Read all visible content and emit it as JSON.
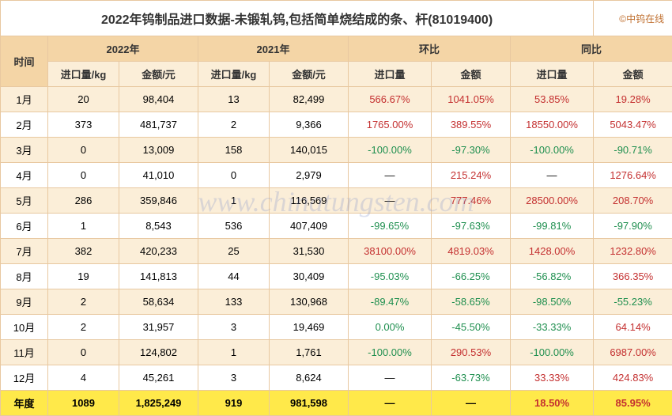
{
  "title": "2022年钨制品进口数据-未锻轧钨,包括简单烧结成的条、杆(81019400)",
  "copyright": "©中钨在线",
  "watermark": "www.chinatungsten.com",
  "header": {
    "time": "时间",
    "g2022": "2022年",
    "g2021": "2021年",
    "mom": "环比",
    "yoy": "同比",
    "vol": "进口量/kg",
    "amt": "金额/元",
    "vol2": "进口量",
    "amt2": "金额"
  },
  "rows": [
    {
      "m": "1月",
      "v22": "20",
      "a22": "98,404",
      "v21": "13",
      "a21": "82,499",
      "mv": "566.67%",
      "mvc": "pos",
      "ma": "1041.05%",
      "mac": "pos",
      "yv": "53.85%",
      "yvc": "pos",
      "ya": "19.28%",
      "yac": "pos"
    },
    {
      "m": "2月",
      "v22": "373",
      "a22": "481,737",
      "v21": "2",
      "a21": "9,366",
      "mv": "1765.00%",
      "mvc": "pos",
      "ma": "389.55%",
      "mac": "pos",
      "yv": "18550.00%",
      "yvc": "pos",
      "ya": "5043.47%",
      "yac": "pos"
    },
    {
      "m": "3月",
      "v22": "0",
      "a22": "13,009",
      "v21": "158",
      "a21": "140,015",
      "mv": "-100.00%",
      "mvc": "neg",
      "ma": "-97.30%",
      "mac": "neg",
      "yv": "-100.00%",
      "yvc": "neg",
      "ya": "-90.71%",
      "yac": "neg"
    },
    {
      "m": "4月",
      "v22": "0",
      "a22": "41,010",
      "v21": "0",
      "a21": "2,979",
      "mv": "—",
      "mvc": "",
      "ma": "215.24%",
      "mac": "pos",
      "yv": "—",
      "yvc": "",
      "ya": "1276.64%",
      "yac": "pos"
    },
    {
      "m": "5月",
      "v22": "286",
      "a22": "359,846",
      "v21": "1",
      "a21": "116,569",
      "mv": "—",
      "mvc": "",
      "ma": "777.46%",
      "mac": "pos",
      "yv": "28500.00%",
      "yvc": "pos",
      "ya": "208.70%",
      "yac": "pos"
    },
    {
      "m": "6月",
      "v22": "1",
      "a22": "8,543",
      "v21": "536",
      "a21": "407,409",
      "mv": "-99.65%",
      "mvc": "neg",
      "ma": "-97.63%",
      "mac": "neg",
      "yv": "-99.81%",
      "yvc": "neg",
      "ya": "-97.90%",
      "yac": "neg"
    },
    {
      "m": "7月",
      "v22": "382",
      "a22": "420,233",
      "v21": "25",
      "a21": "31,530",
      "mv": "38100.00%",
      "mvc": "pos",
      "ma": "4819.03%",
      "mac": "pos",
      "yv": "1428.00%",
      "yvc": "pos",
      "ya": "1232.80%",
      "yac": "pos"
    },
    {
      "m": "8月",
      "v22": "19",
      "a22": "141,813",
      "v21": "44",
      "a21": "30,409",
      "mv": "-95.03%",
      "mvc": "neg",
      "ma": "-66.25%",
      "mac": "neg",
      "yv": "-56.82%",
      "yvc": "neg",
      "ya": "366.35%",
      "yac": "pos"
    },
    {
      "m": "9月",
      "v22": "2",
      "a22": "58,634",
      "v21": "133",
      "a21": "130,968",
      "mv": "-89.47%",
      "mvc": "neg",
      "ma": "-58.65%",
      "mac": "neg",
      "yv": "-98.50%",
      "yvc": "neg",
      "ya": "-55.23%",
      "yac": "neg"
    },
    {
      "m": "10月",
      "v22": "2",
      "a22": "31,957",
      "v21": "3",
      "a21": "19,469",
      "mv": "0.00%",
      "mvc": "neg",
      "ma": "-45.50%",
      "mac": "neg",
      "yv": "-33.33%",
      "yvc": "neg",
      "ya": "64.14%",
      "yac": "pos"
    },
    {
      "m": "11月",
      "v22": "0",
      "a22": "124,802",
      "v21": "1",
      "a21": "1,761",
      "mv": "-100.00%",
      "mvc": "neg",
      "ma": "290.53%",
      "mac": "pos",
      "yv": "-100.00%",
      "yvc": "neg",
      "ya": "6987.00%",
      "yac": "pos"
    },
    {
      "m": "12月",
      "v22": "4",
      "a22": "45,261",
      "v21": "3",
      "a21": "8,624",
      "mv": "—",
      "mvc": "",
      "ma": "-63.73%",
      "mac": "neg",
      "yv": "33.33%",
      "yvc": "pos",
      "ya": "424.83%",
      "yac": "pos"
    }
  ],
  "total": {
    "m": "年度",
    "v22": "1089",
    "a22": "1,825,249",
    "v21": "919",
    "a21": "981,598",
    "mv": "—",
    "mvc": "",
    "ma": "—",
    "mac": "",
    "yv": "18.50%",
    "yvc": "pos",
    "ya": "85.95%",
    "yac": "pos"
  },
  "colors": {
    "header_bg": "#f4d5a6",
    "subheader_bg": "#fbeed8",
    "row_even_bg": "#fbeed8",
    "row_odd_bg": "#ffffff",
    "total_bg": "#ffe94a",
    "border": "#e8c8a0",
    "pos": "#c43030",
    "neg": "#1f8f4f"
  }
}
